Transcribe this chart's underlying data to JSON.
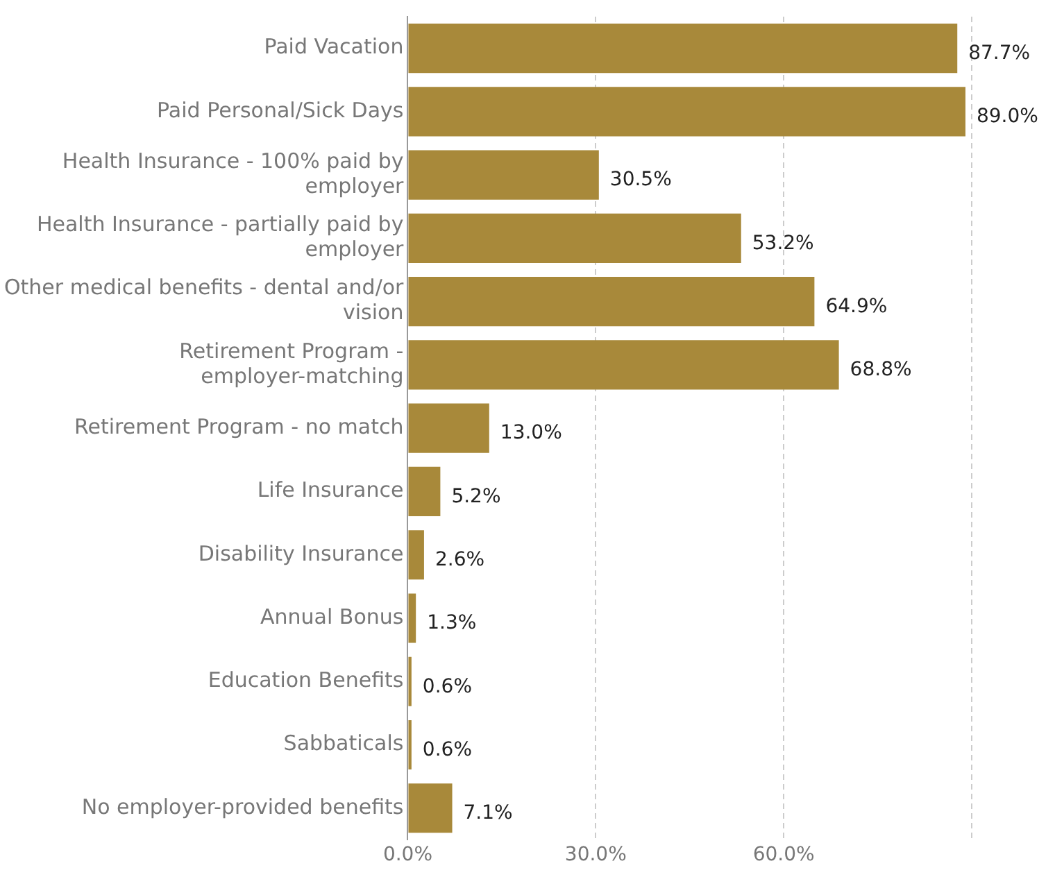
{
  "chart_data": {
    "type": "bar",
    "orientation": "horizontal",
    "categories": [
      "Paid Vacation",
      "Paid Personal/Sick Days",
      "Health Insurance - 100% paid by employer",
      "Health Insurance - partially paid by employer",
      "Other medical benefits - dental and/or vision",
      "Retirement Program - employer-matching",
      "Retirement Program - no match",
      "Life Insurance",
      "Disability Insurance",
      "Annual Bonus",
      "Education Benefits",
      "Sabbaticals",
      "No employer-provided benefits"
    ],
    "values": [
      87.7,
      89.0,
      30.5,
      53.2,
      64.9,
      68.8,
      13.0,
      5.2,
      2.6,
      1.3,
      0.6,
      0.6,
      7.1
    ],
    "value_labels": [
      "87.7%",
      "89.0%",
      "30.5%",
      "53.2%",
      "64.9%",
      "68.8%",
      "13.0%",
      "5.2%",
      "2.6%",
      "1.3%",
      "0.6%",
      "0.6%",
      "7.1%"
    ],
    "color": "#a8893a",
    "xlim": [
      0,
      90
    ],
    "xticks": [
      {
        "value": 0,
        "label": "0.0%"
      },
      {
        "value": 30,
        "label": "30.0%"
      },
      {
        "value": 60,
        "label": "60.0%"
      },
      {
        "value": 90,
        "label": null
      }
    ],
    "grid": "x",
    "legend": false
  }
}
